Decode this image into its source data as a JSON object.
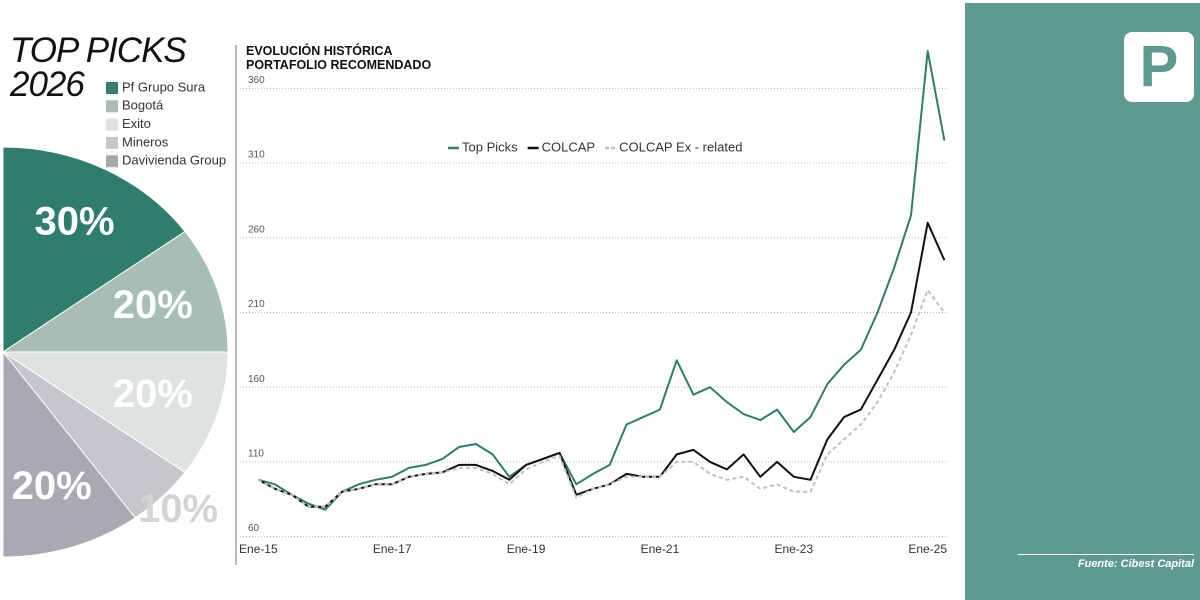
{
  "chart_data": [
    {
      "type": "pie",
      "title": "TOP PICKS\n2026",
      "categories": [
        "Pf Grupo Sura",
        "Bogotá",
        "Exito",
        "Mineros",
        "Davivienda Group"
      ],
      "values": [
        30,
        20,
        20,
        10,
        20
      ],
      "value_labels": [
        "30%",
        "20%",
        "20%",
        "10%",
        "20%"
      ],
      "colors": [
        "#2f7d6c",
        "#a6beb3",
        "#dde4e0",
        "#c6c6cd",
        "#a9a9b1"
      ]
    },
    {
      "type": "line",
      "title": "EVOLUCIÓN HISTÓRICA\nPORTAFOLIO RECOMENDADO",
      "x": [
        "2015-01",
        "2015-04",
        "2015-07",
        "2015-10",
        "2016-01",
        "2016-04",
        "2016-07",
        "2016-10",
        "2017-01",
        "2017-04",
        "2017-07",
        "2017-10",
        "2018-01",
        "2018-04",
        "2018-07",
        "2018-10",
        "2019-01",
        "2019-04",
        "2019-07",
        "2019-10",
        "2020-01",
        "2020-04",
        "2020-07",
        "2020-10",
        "2021-01",
        "2021-04",
        "2021-07",
        "2021-10",
        "2022-01",
        "2022-04",
        "2022-07",
        "2022-10",
        "2023-01",
        "2023-04",
        "2023-07",
        "2023-10",
        "2024-01",
        "2024-04",
        "2024-07",
        "2024-10",
        "2025-01",
        "2025-04"
      ],
      "series": [
        {
          "name": "Top Picks",
          "color": "#2f7d6c",
          "style": "solid",
          "values": [
            98,
            95,
            88,
            82,
            78,
            90,
            95,
            98,
            100,
            106,
            108,
            112,
            120,
            122,
            115,
            100,
            108,
            112,
            116,
            95,
            102,
            108,
            135,
            140,
            145,
            178,
            155,
            160,
            150,
            142,
            138,
            145,
            130,
            140,
            162,
            175,
            185,
            210,
            240,
            275,
            385,
            325
          ]
        },
        {
          "name": "COLCAP",
          "color": "#111111",
          "style": "solid",
          "values": [
            98,
            92,
            88,
            80,
            80,
            90,
            92,
            95,
            95,
            100,
            102,
            103,
            108,
            108,
            104,
            98,
            108,
            112,
            116,
            88,
            92,
            95,
            102,
            100,
            100,
            115,
            118,
            110,
            105,
            115,
            100,
            110,
            100,
            98,
            125,
            140,
            145,
            165,
            185,
            210,
            270,
            245
          ]
        },
        {
          "name": "COLCAP Ex - related",
          "color": "#b9c4bf",
          "style": "dashed",
          "values": [
            98,
            92,
            88,
            80,
            80,
            90,
            92,
            95,
            95,
            100,
            102,
            103,
            106,
            106,
            102,
            95,
            105,
            110,
            114,
            86,
            92,
            95,
            100,
            100,
            100,
            110,
            110,
            102,
            98,
            100,
            92,
            95,
            90,
            90,
            115,
            125,
            135,
            150,
            170,
            195,
            225,
            210
          ]
        }
      ],
      "xlim": [
        "2014-09",
        "2025-05"
      ],
      "xticks": [
        {
          "value": "2015-01",
          "label": "Ene-15"
        },
        {
          "value": "2017-01",
          "label": "Ene-17"
        },
        {
          "value": "2019-01",
          "label": "Ene-19"
        },
        {
          "value": "2021-01",
          "label": "Ene-21"
        },
        {
          "value": "2023-01",
          "label": "Ene-23"
        },
        {
          "value": "2025-01",
          "label": "Ene-25"
        }
      ],
      "ylim": [
        41,
        389
      ],
      "yticks": [
        60,
        110,
        160,
        210,
        260,
        310,
        360
      ],
      "grid": true
    }
  ],
  "logo": "P",
  "source": "Fuente: Cibest Capital"
}
